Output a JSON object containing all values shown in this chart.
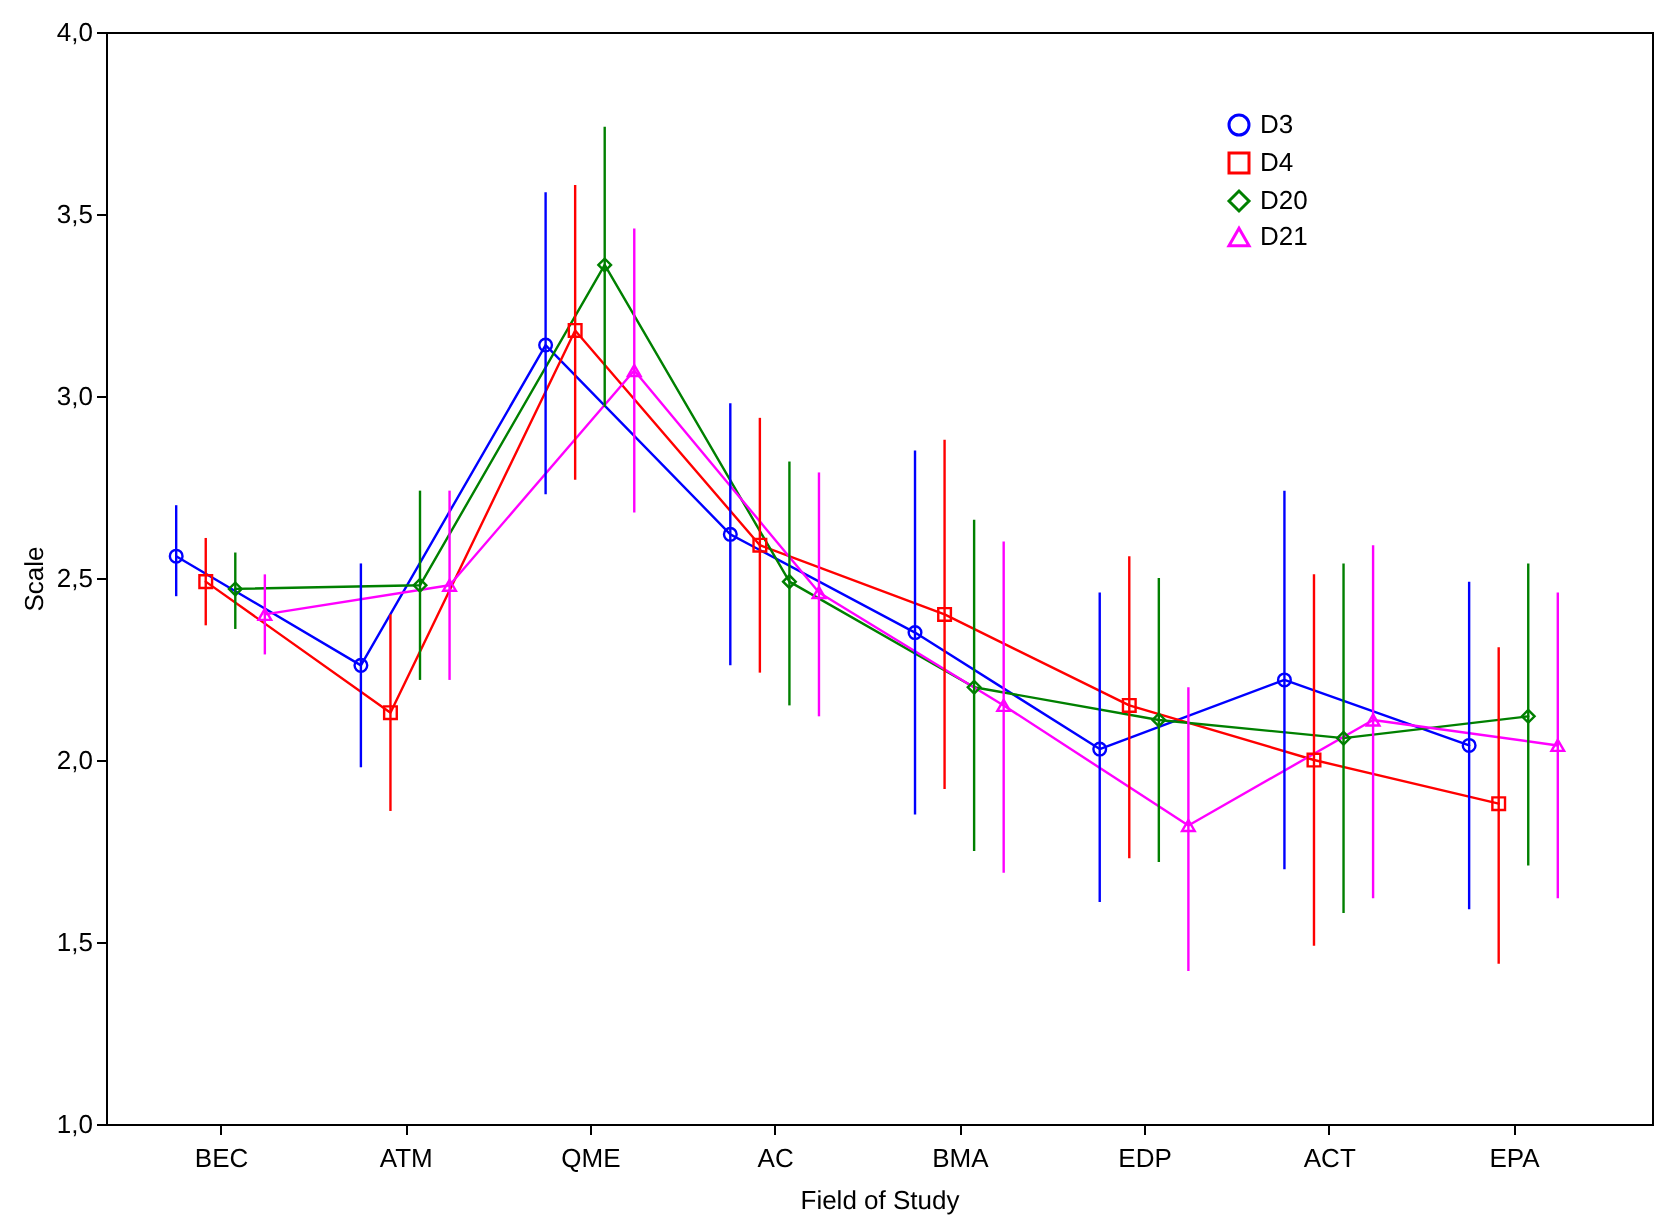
{
  "chart_data": {
    "type": "line",
    "xlabel": "Field of Study",
    "ylabel": "Scale",
    "categories": [
      "BEC",
      "ATM",
      "QME",
      "AC",
      "BMA",
      "EDP",
      "ACT",
      "EPA"
    ],
    "ylim": [
      1,
      4
    ],
    "yticks": [
      {
        "value": 1,
        "label": "1,0"
      },
      {
        "value": 1.5,
        "label": "1,5"
      },
      {
        "value": 2,
        "label": "2,0"
      },
      {
        "value": 2.5,
        "label": "2,5"
      },
      {
        "value": 3,
        "label": "3,0"
      },
      {
        "value": 3.5,
        "label": "3,5"
      },
      {
        "value": 4,
        "label": "4,0"
      }
    ],
    "grid": false,
    "legend": "top right",
    "series": [
      {
        "name": "D3",
        "color": "#0000ff",
        "marker": "circle",
        "values": [
          2.56,
          2.26,
          3.14,
          2.62,
          2.35,
          2.03,
          2.22,
          2.04
        ],
        "errors": [
          [
            2.45,
            2.7
          ],
          [
            1.98,
            2.54
          ],
          [
            2.73,
            3.56
          ],
          [
            2.26,
            2.98
          ],
          [
            1.85,
            2.85
          ],
          [
            1.61,
            2.46
          ],
          [
            1.7,
            2.74
          ],
          [
            1.59,
            2.49
          ]
        ]
      },
      {
        "name": "D4",
        "color": "#ff0000",
        "marker": "square",
        "values": [
          2.49,
          2.13,
          3.18,
          2.59,
          2.4,
          2.15,
          2.0,
          1.88
        ],
        "errors": [
          [
            2.37,
            2.61
          ],
          [
            1.86,
            2.4
          ],
          [
            2.77,
            3.58
          ],
          [
            2.24,
            2.94
          ],
          [
            1.92,
            2.88
          ],
          [
            1.73,
            2.56
          ],
          [
            1.49,
            2.51
          ],
          [
            1.44,
            2.31
          ]
        ]
      },
      {
        "name": "D20",
        "color": "#008000",
        "marker": "diamond",
        "values": [
          2.47,
          2.48,
          3.36,
          2.49,
          2.2,
          2.11,
          2.06,
          2.12
        ],
        "errors": [
          [
            2.36,
            2.57
          ],
          [
            2.22,
            2.74
          ],
          [
            2.97,
            3.74
          ],
          [
            2.15,
            2.82
          ],
          [
            1.75,
            2.66
          ],
          [
            1.72,
            2.5
          ],
          [
            1.58,
            2.54
          ],
          [
            1.71,
            2.54
          ]
        ]
      },
      {
        "name": "D21",
        "color": "#ff00ff",
        "marker": "triangle",
        "values": [
          2.4,
          2.48,
          3.07,
          2.46,
          2.15,
          1.82,
          2.11,
          2.04
        ],
        "errors": [
          [
            2.29,
            2.51
          ],
          [
            2.22,
            2.74
          ],
          [
            2.68,
            3.46
          ],
          [
            2.12,
            2.79
          ],
          [
            1.69,
            2.6
          ],
          [
            1.42,
            2.2
          ],
          [
            1.62,
            2.59
          ],
          [
            1.62,
            2.46
          ]
        ]
      }
    ]
  }
}
